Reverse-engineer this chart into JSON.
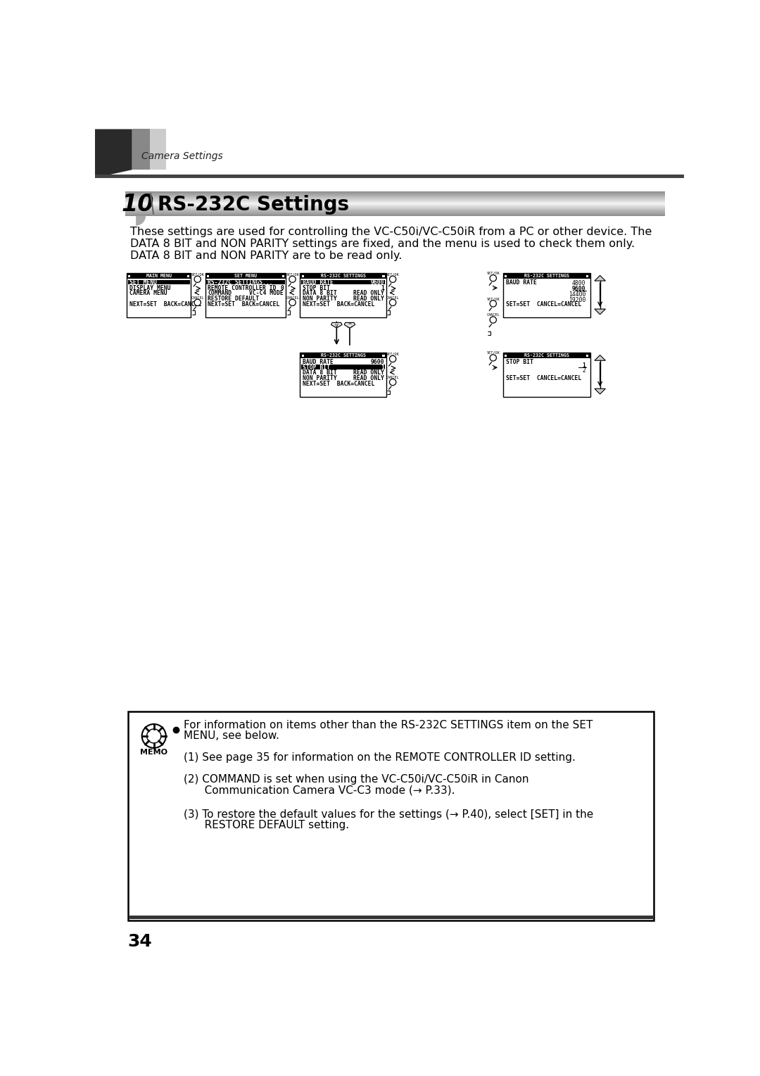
{
  "page_title": "Camera Settings",
  "section_number": "10",
  "section_title": "RS-232C Settings",
  "intro_text": [
    "These settings are used for controlling the VC-C50i/VC-C50iR from a PC or other device. The",
    "DATA 8 BIT and NON PARITY settings are fixed, and the menu is used to check them only.",
    "DATA 8 BIT and NON PARITY are to be read only."
  ],
  "page_number": "34",
  "bg_color": "#ffffff",
  "header_dark": "#3a3a3a",
  "header_mid": "#777777",
  "header_light": "#cccccc",
  "section_bar_dark": "#555555",
  "section_bar_light": "#e0e0e0",
  "text_color": "#000000",
  "memo_line1": "For information on items other than the RS-232C SETTINGS item on the SET",
  "memo_line2": "MENU, see below.",
  "memo_line3": "(1) See page 35 for information on the REMOTE CONTROLLER ID setting.",
  "memo_line4a": "(2) COMMAND is set when using the VC-C50i/VC-C50iR in Canon",
  "memo_line4b": "   Communication Camera VC-C3 mode (→ P.33).",
  "memo_line5a": "(3) To restore the default values for the settings (→ P.40), select [SET] in the",
  "memo_line5b": "   RESTORE DEFAULT setting."
}
